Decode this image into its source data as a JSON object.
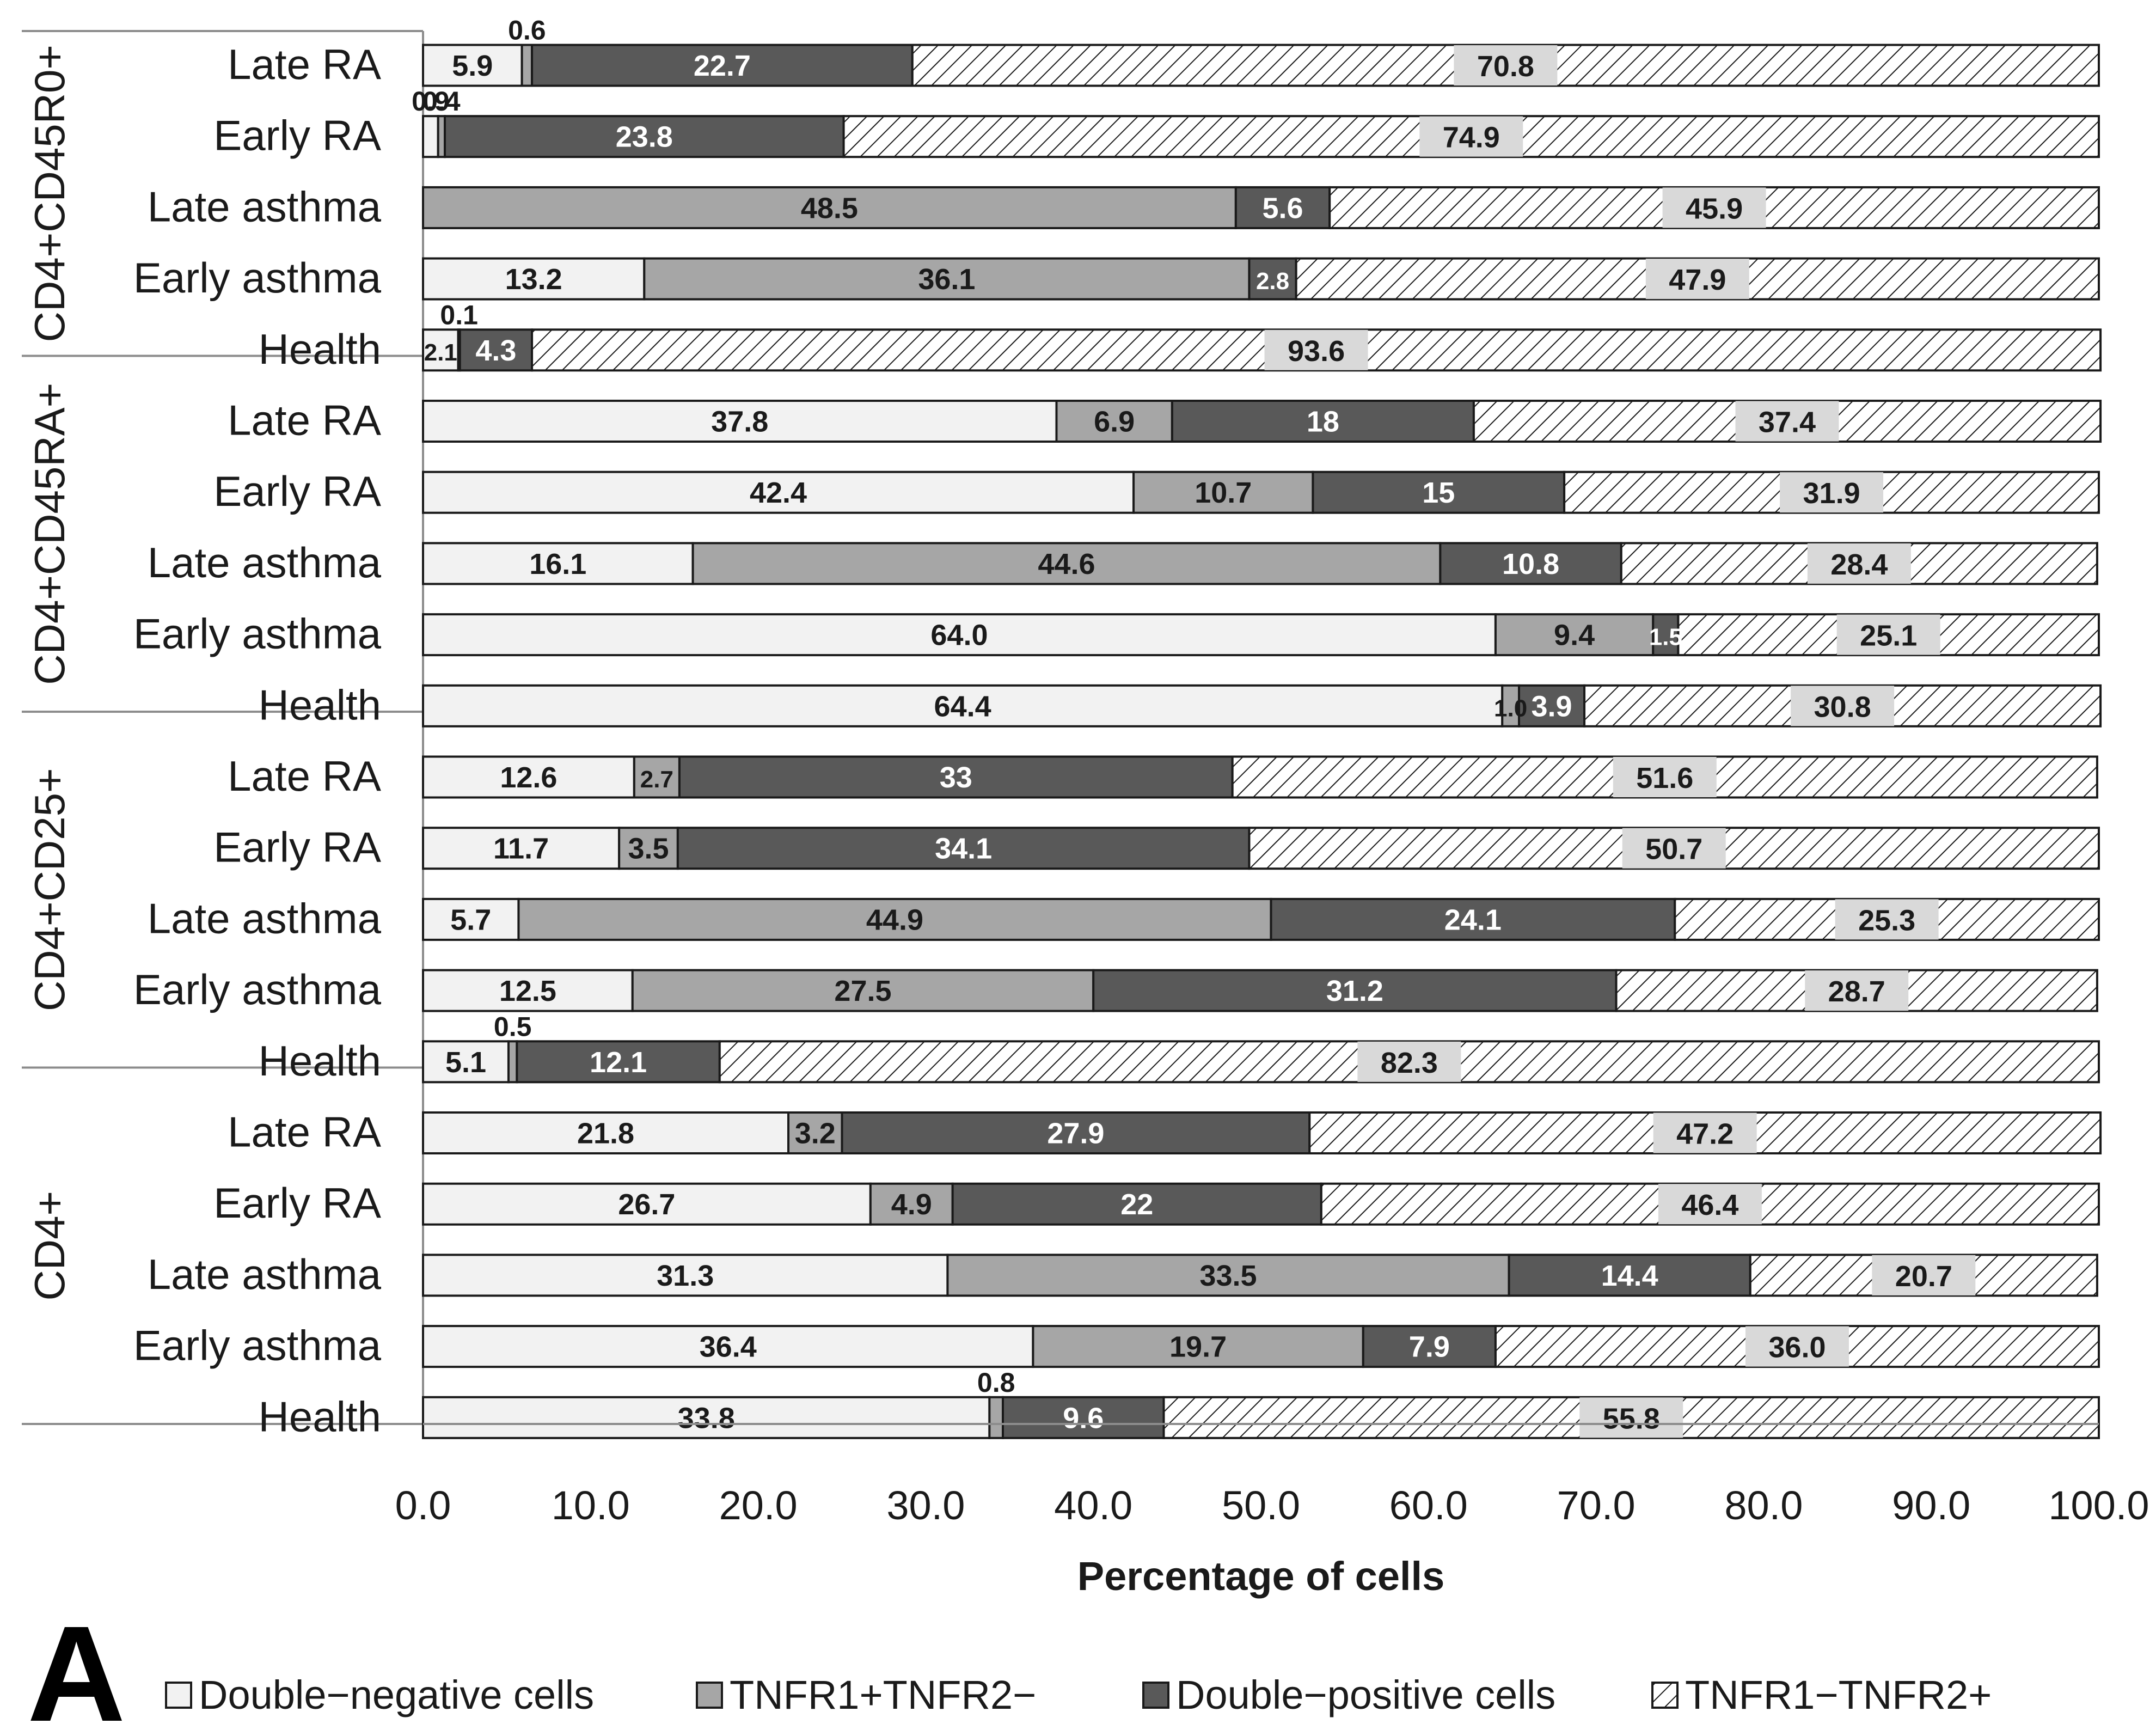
{
  "panel_letter": "A",
  "chart_data": {
    "type": "bar",
    "orientation": "horizontal",
    "stacked": true,
    "xlabel": "Percentage of cells",
    "xlim": [
      0,
      100
    ],
    "xticks": [
      "0.0",
      "10.0",
      "20.0",
      "30.0",
      "40.0",
      "50.0",
      "60.0",
      "70.0",
      "80.0",
      "90.0",
      "100.0"
    ],
    "grid": false,
    "legend_position": "bottom",
    "series": [
      {
        "name": "Double−negative cells",
        "key": "dn",
        "color": "#f2f2f2",
        "pattern": "solid"
      },
      {
        "name": "TNFR1+TNFR2−",
        "key": "r1",
        "color": "#a6a6a6",
        "pattern": "solid"
      },
      {
        "name": "Double−positive cells",
        "key": "dp",
        "color": "#595959",
        "pattern": "solid"
      },
      {
        "name": "TNFR1−TNFR2+",
        "key": "r2",
        "color": "#ffffff",
        "pattern": "hatch"
      }
    ],
    "groups": [
      {
        "name": "CD4+CD45R0+",
        "rows": [
          {
            "category": "Late RA",
            "values": [
              5.9,
              0.6,
              22.7,
              70.8
            ],
            "labels": [
              "5.9",
              "0.6",
              "22.7",
              "70.8"
            ]
          },
          {
            "category": "Early RA",
            "values": [
              0.9,
              0.4,
              23.8,
              74.9
            ],
            "labels": [
              "0.9",
              "0.4",
              "23.8",
              "74.9"
            ]
          },
          {
            "category": "Late asthma",
            "values": [
              0,
              48.5,
              5.6,
              45.9
            ],
            "labels": [
              "",
              "48.5",
              "5.6",
              "45.9"
            ]
          },
          {
            "category": "Early asthma",
            "values": [
              13.2,
              36.1,
              2.8,
              47.9
            ],
            "labels": [
              "13.2",
              "36.1",
              "2.8",
              "47.9"
            ]
          },
          {
            "category": "Health",
            "values": [
              2.1,
              0.1,
              4.3,
              93.6
            ],
            "labels": [
              "2.1",
              "0.1",
              "4.3",
              "93.6"
            ]
          }
        ]
      },
      {
        "name": "CD4+CD45RA+",
        "rows": [
          {
            "category": "Late RA",
            "values": [
              37.8,
              6.9,
              18,
              37.4
            ],
            "labels": [
              "37.8",
              "6.9",
              "18",
              "37.4"
            ]
          },
          {
            "category": "Early RA",
            "values": [
              42.4,
              10.7,
              15,
              31.9
            ],
            "labels": [
              "42.4",
              "10.7",
              "15",
              "31.9"
            ]
          },
          {
            "category": "Late asthma",
            "values": [
              16.1,
              44.6,
              10.8,
              28.4
            ],
            "labels": [
              "16.1",
              "44.6",
              "10.8",
              "28.4"
            ]
          },
          {
            "category": "Early asthma",
            "values": [
              64.0,
              9.4,
              1.5,
              25.1
            ],
            "labels": [
              "64.0",
              "9.4",
              "1.5",
              "25.1"
            ]
          },
          {
            "category": "Health",
            "values": [
              64.4,
              1.0,
              3.9,
              30.8
            ],
            "labels": [
              "64.4",
              "1.0",
              "3.9",
              "30.8"
            ]
          }
        ]
      },
      {
        "name": "CD4+CD25+",
        "rows": [
          {
            "category": "Late RA",
            "values": [
              12.6,
              2.7,
              33,
              51.6
            ],
            "labels": [
              "12.6",
              "2.7",
              "33",
              "51.6"
            ]
          },
          {
            "category": "Early RA",
            "values": [
              11.7,
              3.5,
              34.1,
              50.7
            ],
            "labels": [
              "11.7",
              "3.5",
              "34.1",
              "50.7"
            ]
          },
          {
            "category": "Late asthma",
            "values": [
              5.7,
              44.9,
              24.1,
              25.3
            ],
            "labels": [
              "5.7",
              "44.9",
              "24.1",
              "25.3"
            ]
          },
          {
            "category": "Early asthma",
            "values": [
              12.5,
              27.5,
              31.2,
              28.7
            ],
            "labels": [
              "12.5",
              "27.5",
              "31.2",
              "28.7"
            ]
          },
          {
            "category": "Health",
            "values": [
              5.1,
              0.5,
              12.1,
              82.3
            ],
            "labels": [
              "5.1",
              "0.5",
              "12.1",
              "82.3"
            ]
          }
        ]
      },
      {
        "name": "CD4+",
        "rows": [
          {
            "category": "Late RA",
            "values": [
              21.8,
              3.2,
              27.9,
              47.2
            ],
            "labels": [
              "21.8",
              "3.2",
              "27.9",
              "47.2"
            ]
          },
          {
            "category": "Early RA",
            "values": [
              26.7,
              4.9,
              22,
              46.4
            ],
            "labels": [
              "26.7",
              "4.9",
              "22",
              "46.4"
            ]
          },
          {
            "category": "Late asthma",
            "values": [
              31.3,
              33.5,
              14.4,
              20.7
            ],
            "labels": [
              "31.3",
              "33.5",
              "14.4",
              "20.7"
            ]
          },
          {
            "category": "Early asthma",
            "values": [
              36.4,
              19.7,
              7.9,
              36.0
            ],
            "labels": [
              "36.4",
              "19.7",
              "7.9",
              "36.0"
            ]
          },
          {
            "category": "Health",
            "values": [
              33.8,
              0.8,
              9.6,
              55.8
            ],
            "labels": [
              "33.8",
              "0.8",
              "9.6",
              "55.8"
            ]
          }
        ]
      }
    ]
  }
}
